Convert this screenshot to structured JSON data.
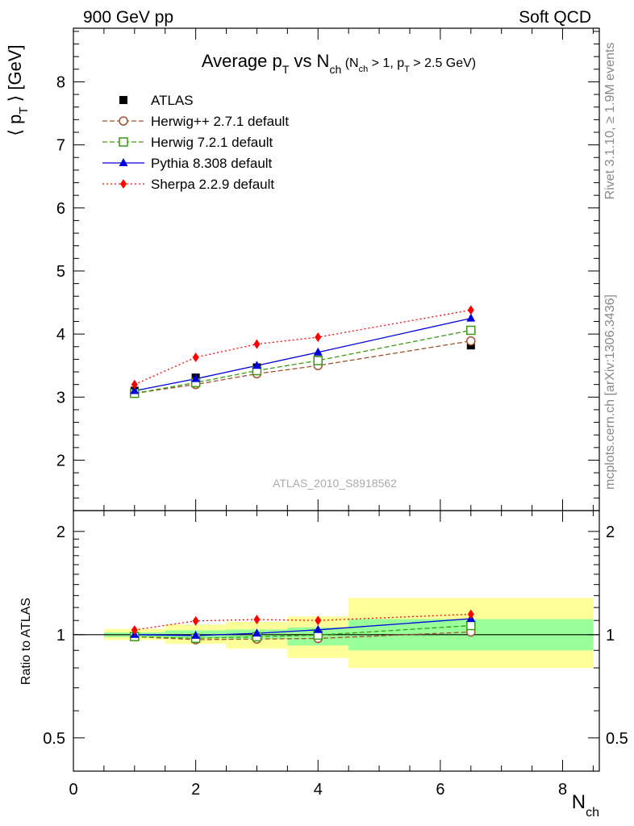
{
  "header": {
    "left": "900 GeV pp",
    "right": "Soft QCD"
  },
  "side_text": {
    "top": "Rivet 3.1.10, ≥ 1.9M events",
    "bottom": "mcplots.cern.ch [arXiv:1306.3436]"
  },
  "watermark": "ATLAS_2010_S8918562",
  "chart_data": [
    {
      "type": "line",
      "title_parts": {
        "main": "Average p",
        "main_sub": "T",
        "vs": " vs N",
        "vs_sub": "ch",
        "cond_open": " (N",
        "cond_sub1": "ch",
        "cond_mid": " > 1, p",
        "cond_sub2": "T",
        "cond_close": " > 2.5 GeV)"
      },
      "ylabel_parts": {
        "left": "⟨ p",
        "sub": "T",
        "right": " ⟩  [GeV]"
      },
      "xlim": [
        0,
        8.6
      ],
      "ylim": [
        1.2,
        8.85
      ],
      "yticks": [
        2,
        3,
        4,
        5,
        6,
        7,
        8
      ],
      "x": [
        1,
        2,
        3,
        4,
        6.5
      ],
      "series": [
        {
          "name": "ATLAS",
          "color": "#000000",
          "marker": "square-filled",
          "values": [
            3.1,
            3.31,
            3.47,
            3.59,
            3.82
          ]
        },
        {
          "name": "Herwig++ 2.7.1 default",
          "color": "#a0522d",
          "dash": "dashed",
          "marker": "circle-open",
          "values": [
            3.06,
            3.2,
            3.37,
            3.5,
            3.89
          ]
        },
        {
          "name": "Herwig 7.2.1 default",
          "color": "#3a9a10",
          "dash": "dashed",
          "marker": "square-open",
          "values": [
            3.06,
            3.23,
            3.42,
            3.58,
            4.06
          ]
        },
        {
          "name": "Pythia 8.308 default",
          "color": "#0000dd",
          "dash": "solid",
          "marker": "triangle-filled",
          "values": [
            3.1,
            3.29,
            3.5,
            3.71,
            4.25
          ]
        },
        {
          "name": "Sherpa 2.2.9 default",
          "color": "#ff0000",
          "dash": "dotted",
          "marker": "diamond-filled",
          "values": [
            3.2,
            3.63,
            3.84,
            3.95,
            4.38
          ]
        }
      ]
    },
    {
      "type": "line",
      "ylabel": "Ratio to ATLAS",
      "xlabel": "N",
      "xlabel_sub": "ch",
      "xlim": [
        0,
        8.6
      ],
      "xticks": [
        0,
        2,
        4,
        6,
        8
      ],
      "ylim": [
        0.4,
        2.3
      ],
      "log_scale": true,
      "yticks": [
        0.5,
        1,
        2
      ],
      "reference": 1,
      "bands": [
        {
          "x": [
            0.5,
            1.5
          ],
          "inner": [
            0.985,
            1.015
          ],
          "outer": [
            0.965,
            1.04
          ]
        },
        {
          "x": [
            1.5,
            2.5
          ],
          "inner": [
            0.975,
            1.03
          ],
          "outer": [
            0.94,
            1.07
          ]
        },
        {
          "x": [
            2.5,
            3.5
          ],
          "inner": [
            0.97,
            1.035
          ],
          "outer": [
            0.91,
            1.09
          ]
        },
        {
          "x": [
            3.5,
            4.5
          ],
          "inner": [
            0.93,
            1.05
          ],
          "outer": [
            0.855,
            1.13
          ]
        },
        {
          "x": [
            4.5,
            8.5
          ],
          "inner": [
            0.9,
            1.11
          ],
          "outer": [
            0.8,
            1.28
          ]
        }
      ],
      "series": [
        {
          "name": "Herwig++ 2.7.1 default",
          "color": "#a0522d",
          "dash": "dashed",
          "marker": "circle-open",
          "values": [
            0.987,
            0.967,
            0.971,
            0.975,
            1.018
          ]
        },
        {
          "name": "Herwig 7.2.1 default",
          "color": "#3a9a10",
          "dash": "dashed",
          "marker": "square-open",
          "values": [
            0.987,
            0.976,
            0.986,
            0.997,
            1.063
          ]
        },
        {
          "name": "Pythia 8.308 default",
          "color": "#0000dd",
          "dash": "solid",
          "marker": "triangle-filled",
          "values": [
            1.0,
            0.994,
            1.009,
            1.033,
            1.113
          ]
        },
        {
          "name": "Sherpa 2.2.9 default",
          "color": "#ff0000",
          "dash": "dotted",
          "marker": "diamond-filled",
          "values": [
            1.032,
            1.097,
            1.107,
            1.1,
            1.147
          ]
        }
      ]
    }
  ]
}
